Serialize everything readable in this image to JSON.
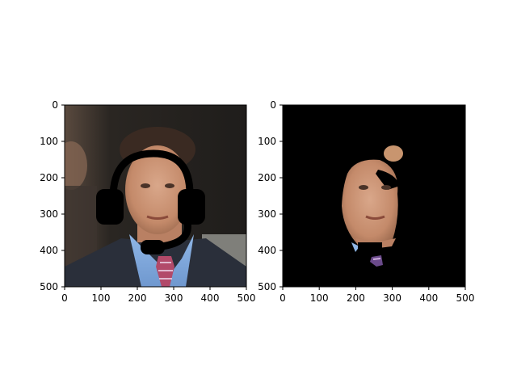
{
  "figure": {
    "background": "#ffffff"
  },
  "chart_data": [
    {
      "type": "image",
      "subtitle": "",
      "image_content": "photo of man in suit with drawn black headset overlay",
      "xlim": [
        0,
        500
      ],
      "ylim": [
        500,
        0
      ],
      "xticks": [
        0,
        100,
        200,
        300,
        400,
        500
      ],
      "yticks": [
        0,
        100,
        200,
        300,
        400,
        500
      ],
      "xtick_labels": [
        "0",
        "100",
        "200",
        "300",
        "400",
        "500"
      ],
      "ytick_labels": [
        "0",
        "100",
        "200",
        "300",
        "400",
        "500"
      ]
    },
    {
      "type": "image",
      "subtitle": "",
      "image_content": "segmented face region on black background",
      "xlim": [
        0,
        500
      ],
      "ylim": [
        500,
        0
      ],
      "xticks": [
        0,
        100,
        200,
        300,
        400,
        500
      ],
      "yticks": [
        0,
        100,
        200,
        300,
        400,
        500
      ],
      "xtick_labels": [
        "0",
        "100",
        "200",
        "300",
        "400",
        "500"
      ],
      "ytick_labels": [
        "0",
        "100",
        "200",
        "300",
        "400",
        "500"
      ]
    }
  ]
}
